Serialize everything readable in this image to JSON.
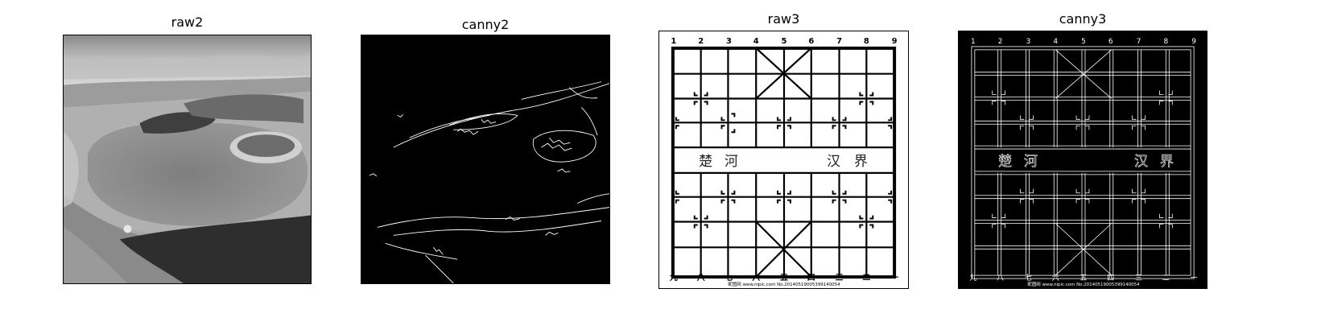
{
  "panels": [
    {
      "title": "raw2"
    },
    {
      "title": "canny2"
    },
    {
      "title": "raw3"
    },
    {
      "title": "canny3"
    }
  ],
  "board": {
    "top_numbers": [
      "1",
      "2",
      "3",
      "4",
      "5",
      "6",
      "7",
      "8",
      "9"
    ],
    "bottom_numbers": [
      "九",
      "八",
      "七",
      "六",
      "五",
      "四",
      "三",
      "二",
      "一"
    ],
    "river_left": [
      "楚",
      "河"
    ],
    "river_right": [
      "汉",
      "界"
    ],
    "footer_text": "昵图网 www.nipic.com  No.20140519005399140054"
  },
  "colors": {
    "background": "#ffffff",
    "edge": "#ffffff",
    "canny_bg": "#000000"
  }
}
